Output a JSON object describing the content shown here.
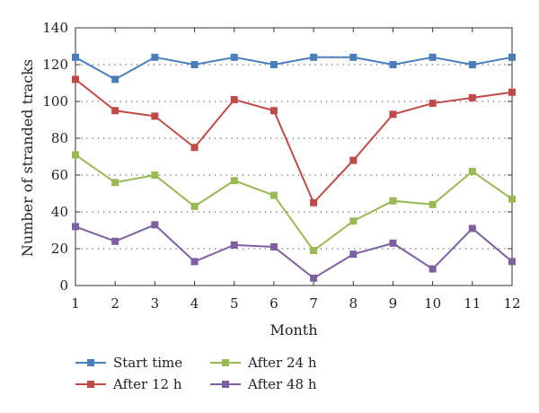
{
  "chart_data": {
    "type": "line",
    "title": "",
    "xlabel": "Month",
    "ylabel": "Number of stranded tracks",
    "x": [
      1,
      2,
      3,
      4,
      5,
      6,
      7,
      8,
      9,
      10,
      11,
      12
    ],
    "xlim": [
      1,
      12
    ],
    "ylim": [
      0,
      140
    ],
    "yticks": [
      0,
      20,
      40,
      60,
      80,
      100,
      120,
      140
    ],
    "grid": "horizontal-dotted",
    "legend_position": "bottom",
    "series": [
      {
        "name": "Start time",
        "color": "#4a7ebb",
        "values": [
          124,
          112,
          124,
          120,
          124,
          120,
          124,
          124,
          120,
          124,
          120,
          124
        ]
      },
      {
        "name": "After 12 h",
        "color": "#be4b48",
        "values": [
          112,
          95,
          92,
          75,
          101,
          95,
          45,
          68,
          93,
          99,
          102,
          105
        ]
      },
      {
        "name": "After 24 h",
        "color": "#98b954",
        "values": [
          71,
          56,
          60,
          43,
          57,
          49,
          19,
          35,
          46,
          44,
          62,
          47
        ]
      },
      {
        "name": "After 48 h",
        "color": "#7d60a0",
        "values": [
          32,
          24,
          33,
          13,
          22,
          21,
          4,
          17,
          23,
          9,
          31,
          13
        ]
      }
    ]
  }
}
